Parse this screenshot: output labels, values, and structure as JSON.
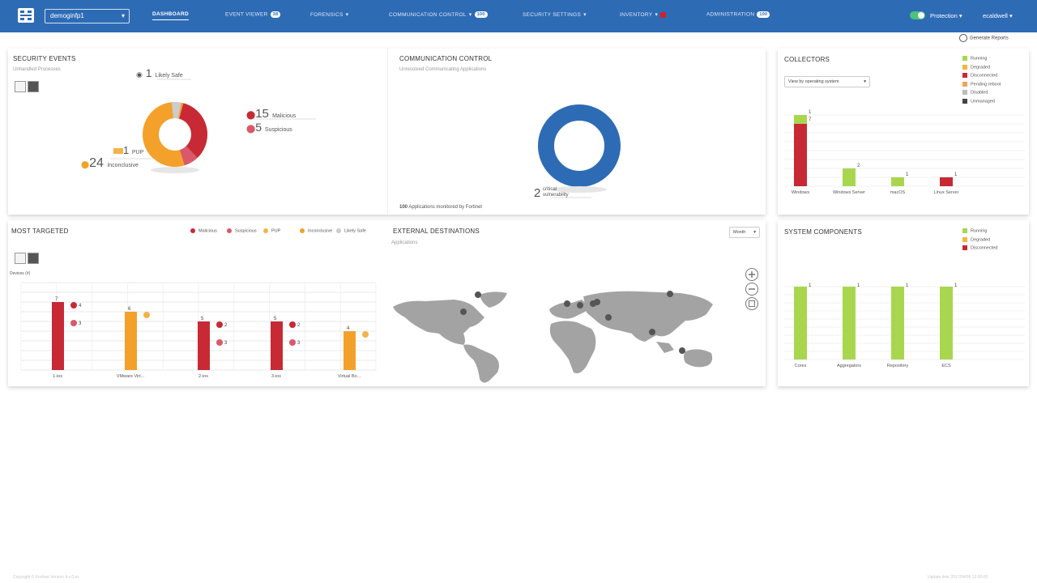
{
  "header": {
    "org": "demoginfp1",
    "nav": [
      {
        "label": "DASHBOARD",
        "active": true
      },
      {
        "label": "EVENT VIEWER",
        "badge": "38"
      },
      {
        "label": "FORENSICS",
        "chevron": true
      },
      {
        "label": "COMMUNICATION CONTROL",
        "chevron": true,
        "badge": "100"
      },
      {
        "label": "SECURITY SETTINGS",
        "chevron": true
      },
      {
        "label": "INVENTORY",
        "chevron": true,
        "badge_red": true
      },
      {
        "label": "ADMINISTRATION",
        "badge": "100"
      }
    ],
    "protection": "Protection",
    "user": "ecaldwell"
  },
  "generate_reports": "Generate Reports",
  "security_events": {
    "title": "SECURITY EVENTS",
    "subtitle": "Unhandled Processes",
    "likely_safe_count": "1",
    "likely_safe_label": "Likely Safe",
    "malicious_count": "15",
    "malicious_label": "Malicious",
    "suspicious_count": "5",
    "suspicious_label": "Suspicious",
    "pup_count": "1",
    "pup_label": "PUP",
    "inconclusive_count": "24",
    "inconclusive_label": "Inconclusive",
    "colors": {
      "malicious": "#c72a35",
      "suspicious": "#d9596a",
      "pup": "#f4b24a",
      "inconclusive": "#f3a12b",
      "likely_safe": "#cccccc"
    }
  },
  "communication_control": {
    "title": "COMMUNICATION CONTROL",
    "subtitle": "Unresolved Communicating Applications",
    "critical_count": "2",
    "critical_label_1": "critical",
    "critical_label_2": "vulnerability",
    "footer_count": "100",
    "footer_text": "Applications monitored by Fortinet",
    "ring_color": "#2e6bb5"
  },
  "collectors": {
    "title": "COLLECTORS",
    "view_select": "View by operating system",
    "legend": [
      {
        "label": "Running",
        "color": "#a8d74f"
      },
      {
        "label": "Degraded",
        "color": "#f2b63f"
      },
      {
        "label": "Disconnected",
        "color": "#c72a35"
      },
      {
        "label": "Pending reboot",
        "color": "#f2a35c"
      },
      {
        "label": "Disabled",
        "color": "#bbbbbb"
      },
      {
        "label": "Unmanaged",
        "color": "#444444"
      }
    ],
    "chart_data": {
      "type": "bar",
      "categories": [
        "Windows",
        "Windows Server",
        "macOS",
        "Linux Server"
      ],
      "series": [
        {
          "name": "Running",
          "values": [
            1,
            2,
            1,
            0
          ]
        },
        {
          "name": "Disconnected",
          "values": [
            7,
            0,
            0,
            1
          ]
        }
      ],
      "bar_labels": {
        "Windows": [
          "1",
          "7"
        ],
        "Windows Server": [
          "2"
        ],
        "macOS": [
          "1"
        ],
        "Linux Server": [
          "1"
        ]
      }
    }
  },
  "most_targeted": {
    "title": "MOST TARGETED",
    "legend": [
      "Malicious",
      "Suspicious",
      "PUP",
      "Inconclusive",
      "Likely Safe"
    ],
    "axis_label": "Devices (#)",
    "chart_data": {
      "type": "bar",
      "categories": [
        "1-ios",
        "VMware Virt...",
        "2-ios",
        "3-ios",
        "Virtual Bo..."
      ],
      "values": [
        7,
        6,
        5,
        5,
        4
      ],
      "colors": [
        "#c72a35",
        "#f3a12b",
        "#c72a35",
        "#c72a35",
        "#f3a12b"
      ],
      "side_labels": [
        [
          "4",
          "3"
        ],
        [
          ""
        ],
        [
          "2",
          "3"
        ],
        [
          "2",
          "3"
        ],
        [
          ""
        ]
      ]
    }
  },
  "external_destinations": {
    "title": "EXTERNAL DESTINATIONS",
    "subtitle": "Applications",
    "period": "Month"
  },
  "system_components": {
    "title": "SYSTEM COMPONENTS",
    "legend": [
      {
        "label": "Running",
        "color": "#a8d74f"
      },
      {
        "label": "Degraded",
        "color": "#f2b63f"
      },
      {
        "label": "Disconnected",
        "color": "#c72a35"
      }
    ],
    "chart_data": {
      "type": "bar",
      "categories": [
        "Cores",
        "Aggregators",
        "Repository",
        "ECS"
      ],
      "values": [
        1,
        1,
        1,
        1
      ],
      "color": "#a8d74f"
    }
  },
  "footer": {
    "left": "Copyright © Fortinet Version 4.x.0.xx",
    "right": "Update time 2017/04/06 12:00:00"
  }
}
